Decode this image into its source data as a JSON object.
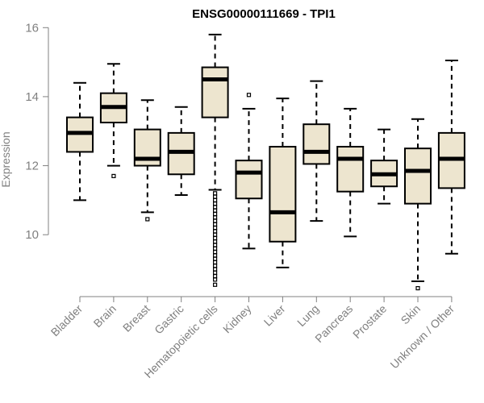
{
  "chart_data": {
    "type": "boxplot",
    "title": "ENSG00000111669 - TPI1",
    "xlabel": "",
    "ylabel": "Expression",
    "ylim": [
      8.3,
      16.1
    ],
    "yticks": [
      10,
      12,
      14,
      16
    ],
    "grid": false,
    "colors": {
      "box_fill": "#ede5cf",
      "stroke": "#000000",
      "axis": "#808080"
    },
    "categories": [
      "Bladder",
      "Brain",
      "Breast",
      "Gastric",
      "Hematopoietic cells",
      "Kidney",
      "Liver",
      "Lung",
      "Pancreas",
      "Prostate",
      "Skin",
      "Unknown / Other"
    ],
    "boxes": [
      {
        "name": "Bladder",
        "whisker_low": 11.0,
        "q1": 12.4,
        "median": 12.95,
        "q3": 13.4,
        "whisker_high": 14.4,
        "outliers": []
      },
      {
        "name": "Brain",
        "whisker_low": 12.0,
        "q1": 13.25,
        "median": 13.7,
        "q3": 14.1,
        "whisker_high": 14.95,
        "outliers": [
          11.7
        ]
      },
      {
        "name": "Breast",
        "whisker_low": 10.65,
        "q1": 12.0,
        "median": 12.2,
        "q3": 13.05,
        "whisker_high": 13.9,
        "outliers": [
          10.45
        ]
      },
      {
        "name": "Gastric",
        "whisker_low": 11.15,
        "q1": 11.75,
        "median": 12.4,
        "q3": 12.95,
        "whisker_high": 13.7,
        "outliers": []
      },
      {
        "name": "Hematopoietic cells",
        "whisker_low": 11.3,
        "q1": 13.4,
        "median": 14.5,
        "q3": 14.85,
        "whisker_high": 15.8,
        "outliers": [
          11.2,
          11.1,
          11.0,
          10.9,
          10.8,
          10.7,
          10.6,
          10.5,
          10.4,
          10.3,
          10.2,
          10.1,
          10.0,
          9.9,
          9.8,
          9.7,
          9.6,
          9.5,
          9.4,
          9.3,
          9.2,
          9.1,
          9.0,
          8.9,
          8.8,
          8.7,
          8.55
        ]
      },
      {
        "name": "Kidney",
        "whisker_low": 9.6,
        "q1": 11.05,
        "median": 11.8,
        "q3": 12.15,
        "whisker_high": 13.65,
        "outliers": [
          14.05
        ]
      },
      {
        "name": "Liver",
        "whisker_low": 9.05,
        "q1": 9.8,
        "median": 10.65,
        "q3": 12.55,
        "whisker_high": 13.95,
        "outliers": []
      },
      {
        "name": "Lung",
        "whisker_low": 10.4,
        "q1": 12.05,
        "median": 12.4,
        "q3": 13.2,
        "whisker_high": 14.45,
        "outliers": []
      },
      {
        "name": "Pancreas",
        "whisker_low": 9.95,
        "q1": 11.25,
        "median": 12.2,
        "q3": 12.55,
        "whisker_high": 13.65,
        "outliers": []
      },
      {
        "name": "Prostate",
        "whisker_low": 10.9,
        "q1": 11.4,
        "median": 11.75,
        "q3": 12.15,
        "whisker_high": 13.05,
        "outliers": []
      },
      {
        "name": "Skin",
        "whisker_low": 8.65,
        "q1": 10.9,
        "median": 11.85,
        "q3": 12.5,
        "whisker_high": 13.35,
        "outliers": [
          8.45
        ]
      },
      {
        "name": "Unknown / Other",
        "whisker_low": 9.45,
        "q1": 11.35,
        "median": 12.2,
        "q3": 12.95,
        "whisker_high": 15.05,
        "outliers": []
      }
    ]
  }
}
